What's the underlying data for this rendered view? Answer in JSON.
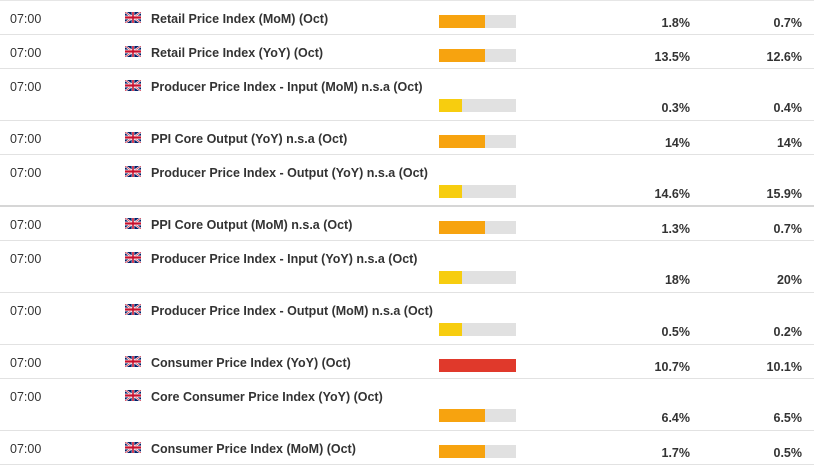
{
  "events": [
    {
      "time": "07:00",
      "name": "Retail Price Index (MoM) (Oct)",
      "impact": "medium",
      "actual": "1.8%",
      "previous": "0.7%"
    },
    {
      "time": "07:00",
      "name": "Retail Price Index (YoY) (Oct)",
      "impact": "medium",
      "actual": "13.5%",
      "previous": "12.6%"
    },
    {
      "time": "07:00",
      "name": "Producer Price Index - Input (MoM) n.s.a (Oct)",
      "impact": "low",
      "actual": "0.3%",
      "previous": "0.4%"
    },
    {
      "time": "07:00",
      "name": "PPI Core Output (YoY) n.s.a (Oct)",
      "impact": "medium",
      "actual": "14%",
      "previous": "14%"
    },
    {
      "time": "07:00",
      "name": "Producer Price Index - Output (YoY) n.s.a (Oct)",
      "impact": "low",
      "actual": "14.6%",
      "previous": "15.9%"
    },
    {
      "time": "07:00",
      "name": "PPI Core Output (MoM) n.s.a (Oct)",
      "impact": "medium",
      "actual": "1.3%",
      "previous": "0.7%"
    },
    {
      "time": "07:00",
      "name": "Producer Price Index - Input (YoY) n.s.a (Oct)",
      "impact": "low",
      "actual": "18%",
      "previous": "20%"
    },
    {
      "time": "07:00",
      "name": "Producer Price Index - Output (MoM) n.s.a (Oct)",
      "impact": "low",
      "actual": "0.5%",
      "previous": "0.2%"
    },
    {
      "time": "07:00",
      "name": "Consumer Price Index (YoY) (Oct)",
      "impact": "high",
      "actual": "10.7%",
      "previous": "10.1%"
    },
    {
      "time": "07:00",
      "name": "Core Consumer Price Index (YoY) (Oct)",
      "impact": "medium",
      "actual": "6.4%",
      "previous": "6.5%"
    },
    {
      "time": "07:00",
      "name": "Consumer Price Index (MoM) (Oct)",
      "impact": "medium",
      "actual": "1.7%",
      "previous": "0.5%"
    }
  ],
  "flag_icon": "uk-flag-icon",
  "colors": {
    "impact_high": "#e0392b",
    "impact_medium": "#f7a30f",
    "impact_low": "#f7cd0f",
    "impact_empty": "#e1e1e1"
  }
}
